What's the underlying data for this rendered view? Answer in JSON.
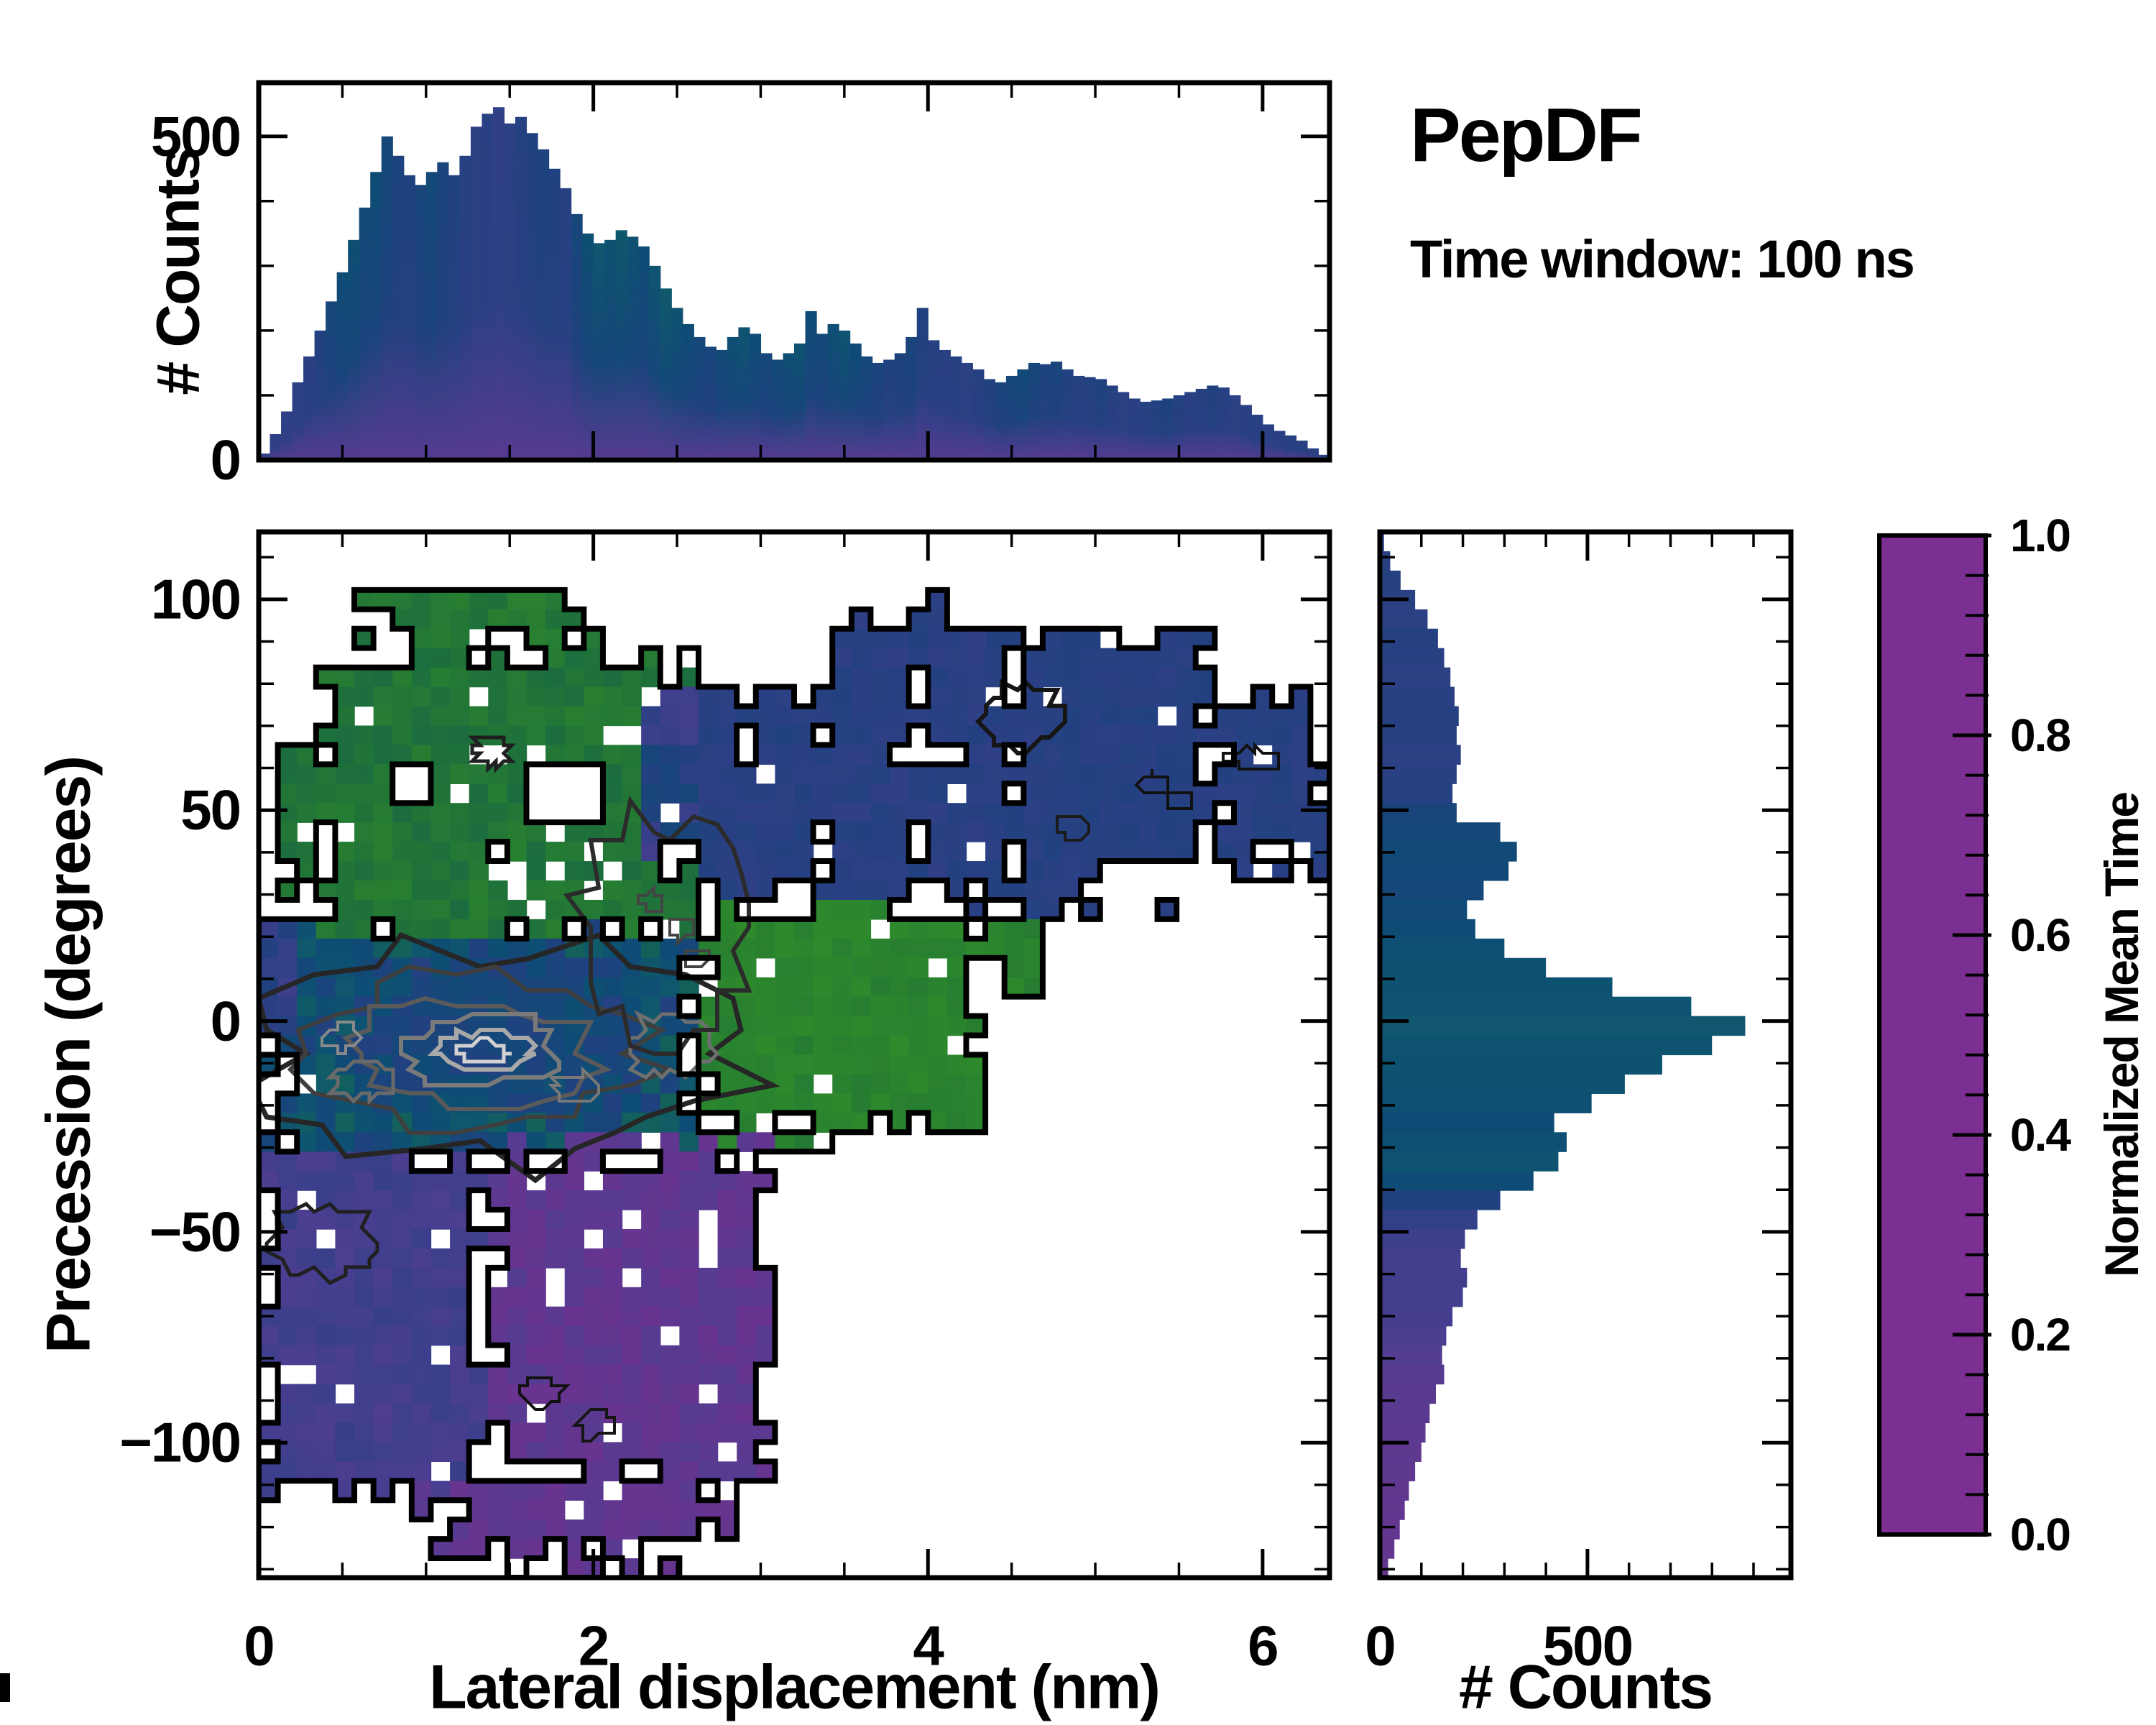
{
  "header": {
    "title": "PepDF",
    "subtitle": "Time window: 100 ns"
  },
  "labels": {
    "top_ylabel": "# Counts",
    "main_xlabel": "Lateral displacement (nm)",
    "main_ylabel": "Precession (degrees)",
    "right_xlabel": "# Counts",
    "colorbar_label": "Normalized Mean Time"
  },
  "colors": {
    "background": "#ffffff",
    "frame": "#000000",
    "accent_green": "#2f8c2a",
    "accent_teal": "#115c66",
    "accent_navy": "#20417f",
    "accent_purple": "#7b2f92"
  },
  "chart_data": [
    {
      "id": "top_histogram",
      "type": "bar",
      "title": "",
      "xlabel": "",
      "ylabel": "# Counts",
      "xlim": [
        0,
        6.4
      ],
      "ylim": [
        0,
        583
      ],
      "x_major_ticks": [
        0,
        2,
        4,
        6
      ],
      "x_minor_step": 0.5,
      "y_major_ticks": [
        0,
        500
      ],
      "y_major_labels": [
        "0",
        "500"
      ],
      "y_minor_ticks": [
        100,
        200,
        300,
        400
      ],
      "x_start": 0.0333,
      "bin_width": 0.0667,
      "counts": [
        10,
        40,
        75,
        120,
        160,
        200,
        245,
        290,
        340,
        390,
        445,
        500,
        470,
        440,
        425,
        445,
        460,
        440,
        470,
        515,
        535,
        545,
        520,
        530,
        505,
        480,
        450,
        420,
        380,
        350,
        335,
        340,
        355,
        345,
        330,
        300,
        265,
        235,
        210,
        190,
        175,
        170,
        190,
        205,
        195,
        165,
        155,
        165,
        180,
        230,
        195,
        210,
        200,
        180,
        160,
        150,
        155,
        165,
        190,
        235,
        185,
        170,
        160,
        150,
        140,
        125,
        120,
        130,
        140,
        150,
        148,
        152,
        140,
        130,
        128,
        125,
        115,
        105,
        95,
        90,
        92,
        95,
        100,
        105,
        110,
        115,
        112,
        100,
        85,
        70,
        55,
        45,
        38,
        30,
        18,
        8
      ],
      "color_values": [
        0.33,
        0.34,
        0.35,
        0.36,
        0.37,
        0.4,
        0.45,
        0.5,
        0.52,
        0.48,
        0.5,
        0.46,
        0.42,
        0.4,
        0.44,
        0.47,
        0.43,
        0.4,
        0.38,
        0.36,
        0.37,
        0.35,
        0.36,
        0.38,
        0.4,
        0.42,
        0.4,
        0.38,
        0.45,
        0.52,
        0.56,
        0.54,
        0.57,
        0.53,
        0.5,
        0.55,
        0.58,
        0.54,
        0.5,
        0.46,
        0.44,
        0.48,
        0.52,
        0.55,
        0.5,
        0.46,
        0.48,
        0.52,
        0.54,
        0.5,
        0.47,
        0.52,
        0.55,
        0.5,
        0.46,
        0.43,
        0.4,
        0.42,
        0.44,
        0.4,
        0.38,
        0.37,
        0.38,
        0.36,
        0.38,
        0.4,
        0.43,
        0.46,
        0.48,
        0.45,
        0.42,
        0.44,
        0.4,
        0.38,
        0.39,
        0.41,
        0.38,
        0.36,
        0.37,
        0.38,
        0.4,
        0.42,
        0.39,
        0.37,
        0.38,
        0.4,
        0.38,
        0.36,
        0.37,
        0.38,
        0.36,
        0.37,
        0.38,
        0.37,
        0.36,
        0.37
      ]
    },
    {
      "id": "main_heatmap",
      "type": "heatmap",
      "xlabel": "Lateral displacement (nm)",
      "ylabel": "Precession (degrees)",
      "xlim": [
        0,
        6.4
      ],
      "ylim": [
        -132,
        116
      ],
      "x_major_ticks": [
        0,
        2,
        4,
        6
      ],
      "x_major_labels": [
        "0",
        "2",
        "4",
        "6"
      ],
      "x_minor_step": 0.5,
      "y_major_ticks": [
        100,
        50,
        0,
        -50,
        -100
      ],
      "y_major_labels": [
        "100",
        "50",
        "0",
        "−50",
        "−100"
      ],
      "y_minor_step": 10,
      "grid": {
        "cols": 56,
        "rows": 54
      },
      "value_field": "normalized_mean_time",
      "regions": [
        {
          "name": "center-mix",
          "x": [
            0.03,
            2.62
          ],
          "y": [
            -32,
            22
          ],
          "value": 0.52,
          "noise": 0.13,
          "edge": 0.06,
          "holes": 0.03
        },
        {
          "name": "center-blob",
          "x": [
            0.6,
            2.3
          ],
          "y": [
            -20,
            13
          ],
          "value": 0.46,
          "noise": 0.08,
          "edge": 0,
          "holes": 0.02
        },
        {
          "name": "center-core",
          "x": [
            1.0,
            1.8
          ],
          "y": [
            -13,
            6
          ],
          "value": 0.44,
          "noise": 0.05,
          "edge": 0,
          "holes": 0
        },
        {
          "name": "left-edge-indigo",
          "x": [
            0.03,
            0.28
          ],
          "y": [
            -4,
            22
          ],
          "value": 0.35,
          "noise": 0.06,
          "edge": 0,
          "holes": 0.05
        },
        {
          "name": "green-upper-main",
          "x": [
            0.3,
            2.58
          ],
          "y": [
            20,
            90
          ],
          "value": 0.82,
          "noise": 0.07,
          "edge": 0.08,
          "holes": 0.07
        },
        {
          "name": "green-upper-cap",
          "x": [
            0.55,
            2.08
          ],
          "y": [
            88,
            104
          ],
          "value": 0.84,
          "noise": 0.06,
          "edge": 0.18,
          "holes": 0.07
        },
        {
          "name": "green-left-wing",
          "x": [
            0.1,
            0.34
          ],
          "y": [
            30,
            68
          ],
          "value": 0.8,
          "noise": 0.07,
          "edge": 0.2,
          "holes": 0.08
        },
        {
          "name": "indigo-strip",
          "x": [
            2.3,
            2.66
          ],
          "y": [
            38,
            80
          ],
          "value": 0.36,
          "noise": 0.09,
          "edge": 0.1,
          "holes": 0.06
        },
        {
          "name": "navy-left",
          "x": [
            2.58,
            3.38
          ],
          "y": [
            28,
            78
          ],
          "value": 0.375,
          "noise": 0.025,
          "edge": 0.08,
          "holes": 0.05
        },
        {
          "name": "navy-mid",
          "x": [
            3.38,
            3.97
          ],
          "y": [
            28,
            98
          ],
          "value": 0.37,
          "noise": 0.025,
          "edge": 0.08,
          "holes": 0.05
        },
        {
          "name": "navy-tall",
          "x": [
            3.97,
            4.48
          ],
          "y": [
            26,
            101
          ],
          "value": 0.37,
          "noise": 0.025,
          "edge": 0.08,
          "holes": 0.05
        },
        {
          "name": "navy-right",
          "x": [
            4.48,
            5.75
          ],
          "y": [
            24,
            95
          ],
          "value": 0.375,
          "noise": 0.02,
          "edge": 0.1,
          "holes": 0.05
        },
        {
          "name": "navy-far-right",
          "x": [
            5.75,
            6.38
          ],
          "y": [
            34,
            80
          ],
          "value": 0.37,
          "noise": 0.02,
          "edge": 0.15,
          "holes": 0.04
        },
        {
          "name": "green-mid-right",
          "x": [
            2.62,
            4.38
          ],
          "y": [
            -26,
            28
          ],
          "value": 0.93,
          "noise": 0.05,
          "edge": 0.07,
          "holes": 0.05
        },
        {
          "name": "green-mid-tongue",
          "x": [
            4.38,
            4.72
          ],
          "y": [
            2,
            24
          ],
          "value": 0.92,
          "noise": 0.05,
          "edge": 0.25,
          "holes": 0.05
        },
        {
          "name": "green-mid-low",
          "x": [
            2.62,
            3.6
          ],
          "y": [
            -33,
            -26
          ],
          "value": 0.9,
          "noise": 0.06,
          "edge": 0.2,
          "holes": 0.05
        },
        {
          "name": "indigo-lower-left",
          "x": [
            0.03,
            1.32
          ],
          "y": [
            -112,
            -30
          ],
          "value": 0.27,
          "noise": 0.05,
          "edge": 0.06,
          "holes": 0.05
        },
        {
          "name": "purple-bottom",
          "x": [
            1.32,
            3.08
          ],
          "y": [
            -110,
            -28
          ],
          "value": 0.14,
          "noise": 0.05,
          "edge": 0.07,
          "holes": 0.07
        },
        {
          "name": "purple-deep",
          "x": [
            0.95,
            2.9
          ],
          "y": [
            -128,
            -108
          ],
          "value": 0.13,
          "noise": 0.04,
          "edge": 0.15,
          "holes": 0.07
        },
        {
          "name": "purple-tip",
          "x": [
            1.5,
            2.62
          ],
          "y": [
            -141,
            -126
          ],
          "value": 0.12,
          "noise": 0.04,
          "edge": 0.3,
          "holes": 0.08
        }
      ],
      "outlined_holes": [
        [
          1.55,
          2.0,
          48,
          62
        ],
        [
          0.85,
          1.02,
          54,
          60
        ],
        [
          1.4,
          1.52,
          40,
          44
        ],
        [
          0.68,
          0.8,
          87,
          91
        ],
        [
          2.0,
          2.12,
          45,
          49
        ],
        [
          5.05,
          5.85,
          18,
          36
        ],
        [
          3.78,
          3.98,
          60,
          67
        ],
        [
          4.05,
          4.2,
          59,
          65
        ],
        [
          4.45,
          4.6,
          38,
          44
        ],
        [
          2.86,
          3.02,
          60,
          70
        ]
      ],
      "islands": [
        {
          "x": [
            5.38,
            5.52
          ],
          "y": [
            24,
            30
          ],
          "value": 0.37
        }
      ],
      "contour_rings": [
        {
          "cx": 1.45,
          "cy": -8,
          "rx": 1.4,
          "ry": 26,
          "color": "#262626",
          "lw": 7
        },
        {
          "cx": 1.3,
          "cy": -7,
          "rx": 0.98,
          "ry": 18,
          "color": "#3f3f3f",
          "lw": 6
        },
        {
          "cx": 1.25,
          "cy": -7,
          "rx": 0.72,
          "ry": 13,
          "color": "#5a5a5a",
          "lw": 6
        },
        {
          "cx": 1.33,
          "cy": -7,
          "rx": 0.47,
          "ry": 8.5,
          "color": "#7a7a7a",
          "lw": 6
        },
        {
          "cx": 1.35,
          "cy": -7,
          "rx": 0.27,
          "ry": 5,
          "color": "#a8a8a8",
          "lw": 6
        },
        {
          "cx": 1.35,
          "cy": -7.5,
          "rx": 0.14,
          "ry": 2.6,
          "color": "#d2d2d2",
          "lw": 5
        },
        {
          "cx": 0.62,
          "cy": -14,
          "rx": 0.18,
          "ry": 4.5,
          "color": "#6a6a6a",
          "lw": 5
        },
        {
          "cx": 0.5,
          "cy": -4,
          "rx": 0.12,
          "ry": 3,
          "color": "#8a8a8a",
          "lw": 4
        },
        {
          "cx": 1.9,
          "cy": -16,
          "rx": 0.13,
          "ry": 3.5,
          "color": "#787878",
          "lw": 4
        },
        {
          "cx": 2.45,
          "cy": -6,
          "rx": 0.24,
          "ry": 7,
          "color": "#6f6f6f",
          "lw": 5
        },
        {
          "cx": 2.42,
          "cy": 22,
          "rx": 0.5,
          "ry": 27,
          "color": "#2b2b2b",
          "lw": 6
        },
        {
          "cx": 2.35,
          "cy": 28,
          "rx": 0.07,
          "ry": 2.5,
          "color": "#444444",
          "lw": 4
        },
        {
          "cx": 2.52,
          "cy": 22,
          "rx": 0.07,
          "ry": 2.5,
          "color": "#444444",
          "lw": 4
        },
        {
          "cx": 2.62,
          "cy": 15,
          "rx": 0.06,
          "ry": 2,
          "color": "#444444",
          "lw": 4
        },
        {
          "cx": 1.39,
          "cy": 64,
          "rx": 0.11,
          "ry": 3.5,
          "color": "#1f1f1f",
          "lw": 5
        },
        {
          "cx": 4.55,
          "cy": 72,
          "rx": 0.24,
          "ry": 7,
          "color": "#161616",
          "lw": 6
        },
        {
          "cx": 5.35,
          "cy": 56,
          "rx": 0.09,
          "ry": 2.6,
          "color": "#111111",
          "lw": 4
        },
        {
          "cx": 5.5,
          "cy": 52,
          "rx": 0.07,
          "ry": 2.2,
          "color": "#111111",
          "lw": 4
        },
        {
          "cx": 4.87,
          "cy": 46,
          "rx": 0.1,
          "ry": 3,
          "color": "#1b1b1b",
          "lw": 4
        },
        {
          "cx": 5.95,
          "cy": 62,
          "rx": 0.16,
          "ry": 2.4,
          "color": "#111111",
          "lw": 4
        },
        {
          "cx": 0.38,
          "cy": -52,
          "rx": 0.3,
          "ry": 8,
          "color": "#202020",
          "lw": 5
        },
        {
          "cx": 1.68,
          "cy": -88,
          "rx": 0.12,
          "ry": 4,
          "color": "#111111",
          "lw": 4
        },
        {
          "cx": 2.02,
          "cy": -96,
          "rx": 0.1,
          "ry": 3,
          "color": "#161616",
          "lw": 4
        }
      ]
    },
    {
      "id": "right_histogram",
      "type": "bar-horizontal",
      "xlabel": "# Counts",
      "xlim": [
        0,
        990
      ],
      "ylim": [
        -132,
        116
      ],
      "x_major_ticks": [
        0,
        500
      ],
      "x_major_labels": [
        "0",
        "500"
      ],
      "x_minor_step": 100,
      "y_major_step": 50,
      "y_minor_step": 10,
      "y_start": 113.7,
      "bin_height": 4.593,
      "counts": [
        10,
        25,
        50,
        85,
        115,
        140,
        155,
        170,
        180,
        190,
        185,
        195,
        185,
        175,
        185,
        290,
        330,
        310,
        250,
        210,
        230,
        300,
        400,
        560,
        750,
        880,
        800,
        680,
        590,
        510,
        420,
        450,
        430,
        370,
        290,
        235,
        205,
        195,
        210,
        200,
        175,
        160,
        150,
        155,
        135,
        120,
        110,
        100,
        85,
        70,
        60,
        48,
        35,
        20
      ],
      "color_values": [
        0.36,
        0.37,
        0.38,
        0.37,
        0.36,
        0.38,
        0.37,
        0.36,
        0.37,
        0.38,
        0.37,
        0.36,
        0.37,
        0.38,
        0.44,
        0.46,
        0.48,
        0.47,
        0.46,
        0.48,
        0.5,
        0.52,
        0.53,
        0.54,
        0.55,
        0.56,
        0.55,
        0.54,
        0.53,
        0.52,
        0.5,
        0.52,
        0.55,
        0.5,
        0.4,
        0.34,
        0.3,
        0.27,
        0.28,
        0.27,
        0.26,
        0.24,
        0.2,
        0.18,
        0.17,
        0.16,
        0.15,
        0.14,
        0.14,
        0.13,
        0.13,
        0.12,
        0.12,
        0.12
      ]
    },
    {
      "id": "colorbar",
      "type": "colorbar",
      "label": "Normalized Mean Time",
      "range": [
        0,
        1
      ],
      "ticks": [
        1.0,
        0.8,
        0.6,
        0.4,
        0.2,
        0.0
      ],
      "tick_labels": [
        "1.0",
        "0.8",
        "0.6",
        "0.4",
        "0.2",
        "0.0"
      ],
      "minor_step": 0.04,
      "stops": [
        [
          0.0,
          "#7b2f92"
        ],
        [
          0.1,
          "#67348f"
        ],
        [
          0.2,
          "#523d92"
        ],
        [
          0.3,
          "#3d3f8c"
        ],
        [
          0.4,
          "#20417f"
        ],
        [
          0.5,
          "#0e4c75"
        ],
        [
          0.55,
          "#0e5470"
        ],
        [
          0.6,
          "#115c66"
        ],
        [
          0.7,
          "#176847"
        ],
        [
          0.8,
          "#1f7239"
        ],
        [
          0.9,
          "#288030"
        ],
        [
          1.0,
          "#2f8c2a"
        ]
      ]
    }
  ]
}
